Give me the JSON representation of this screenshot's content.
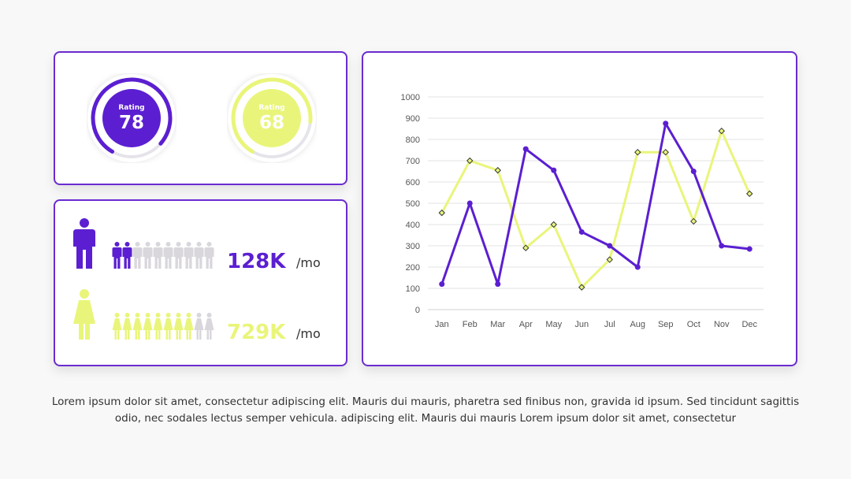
{
  "colors": {
    "purple": "#5b1fd1",
    "yellow": "#e9f57a",
    "border": "#6a2bd0",
    "gray_icon": "#d9d6dc"
  },
  "ratings": [
    {
      "label": "Rating",
      "value": 78,
      "color": "#5b1fd1"
    },
    {
      "label": "Rating",
      "value": 68,
      "color": "#e9f57a"
    }
  ],
  "users": [
    {
      "icon": "male-icon",
      "value": "128K",
      "unit": "/mo",
      "color": "#5b1fd1",
      "filled": 2,
      "total": 10
    },
    {
      "icon": "female-icon",
      "value": "729K",
      "unit": "/mo",
      "color": "#e9f57a",
      "filled": 8,
      "total": 10
    }
  ],
  "chart_data": {
    "type": "line",
    "categories": [
      "Jan",
      "Feb",
      "Mar",
      "Apr",
      "May",
      "Jun",
      "Jul",
      "Aug",
      "Sep",
      "Oct",
      "Nov",
      "Dec"
    ],
    "series": [
      {
        "color": "#5b1fd1",
        "marker": "circle",
        "values": [
          120,
          500,
          120,
          755,
          655,
          365,
          300,
          200,
          875,
          650,
          300,
          285
        ]
      },
      {
        "color": "#e9f57a",
        "marker": "diamond",
        "values": [
          455,
          700,
          655,
          290,
          400,
          105,
          235,
          740,
          740,
          415,
          840,
          545
        ]
      }
    ],
    "ylim": [
      0,
      1000
    ],
    "yticks": [
      0,
      100,
      200,
      300,
      400,
      500,
      600,
      700,
      800,
      900,
      1000
    ],
    "grid": true,
    "legend": "none"
  },
  "description": "Lorem ipsum dolor sit amet, consectetur adipiscing elit. Mauris dui mauris, pharetra sed finibus non, gravida id ipsum. Sed tincidunt sagittis odio, nec sodales lectus semper vehicula. adipiscing elit. Mauris dui mauris Lorem ipsum dolor sit amet, consectetur"
}
